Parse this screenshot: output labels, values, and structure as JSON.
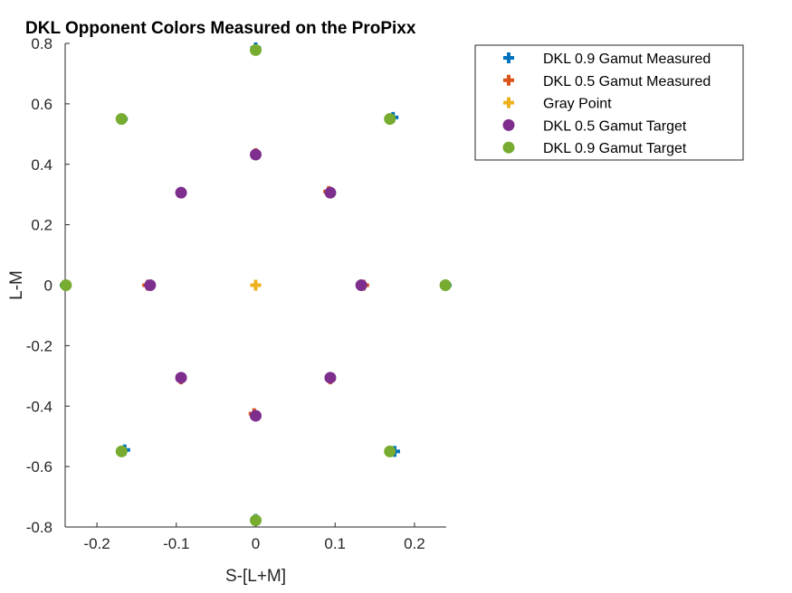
{
  "chart_data": {
    "type": "scatter",
    "title": "DKL Opponent Colors Measured on the ProPixx",
    "xlabel": "S-[L+M]",
    "ylabel": "L-M",
    "xlim": [
      -0.24,
      0.24
    ],
    "ylim": [
      -0.8,
      0.8
    ],
    "xticks": [
      -0.2,
      -0.1,
      0,
      0.1,
      0.2
    ],
    "xtick_labels": [
      "-0.2",
      "-0.1",
      "0",
      "0.1",
      "0.2"
    ],
    "yticks": [
      -0.8,
      -0.6,
      -0.4,
      -0.2,
      0,
      0.2,
      0.4,
      0.6,
      0.8
    ],
    "ytick_labels": [
      "-0.8",
      "-0.6",
      "-0.4",
      "-0.2",
      "0",
      "0.2",
      "0.4",
      "0.6",
      "0.8"
    ],
    "grid": false,
    "legend_position": "outside-top-right",
    "series": [
      {
        "name": "DKL 0.9 Gamut Measured",
        "marker": "plus",
        "color": "#0072BD",
        "points": [
          {
            "x": 0.24,
            "y": 0.0
          },
          {
            "x": 0.173,
            "y": 0.555
          },
          {
            "x": 0.0,
            "y": 0.785
          },
          {
            "x": -0.168,
            "y": 0.55
          },
          {
            "x": -0.24,
            "y": 0.0
          },
          {
            "x": -0.165,
            "y": -0.545
          },
          {
            "x": 0.0,
            "y": -0.775
          },
          {
            "x": 0.175,
            "y": -0.55
          }
        ]
      },
      {
        "name": "DKL 0.5 Gamut Measured",
        "marker": "plus",
        "color": "#D95319",
        "points": [
          {
            "x": 0.136,
            "y": 0.0
          },
          {
            "x": 0.092,
            "y": 0.31
          },
          {
            "x": 0.0,
            "y": 0.435
          },
          {
            "x": -0.094,
            "y": 0.305
          },
          {
            "x": -0.136,
            "y": 0.0
          },
          {
            "x": -0.094,
            "y": -0.31
          },
          {
            "x": -0.002,
            "y": -0.425
          },
          {
            "x": 0.094,
            "y": -0.31
          }
        ]
      },
      {
        "name": "Gray Point",
        "marker": "plus",
        "color": "#EDB120",
        "points": [
          {
            "x": 0.0,
            "y": 0.0
          }
        ]
      },
      {
        "name": "DKL 0.5 Gamut Target",
        "marker": "circle",
        "color": "#7E2F8E",
        "points": [
          {
            "x": 0.133,
            "y": 0.0
          },
          {
            "x": 0.094,
            "y": 0.306
          },
          {
            "x": 0.0,
            "y": 0.432
          },
          {
            "x": -0.094,
            "y": 0.306
          },
          {
            "x": -0.133,
            "y": 0.0
          },
          {
            "x": -0.094,
            "y": -0.306
          },
          {
            "x": 0.0,
            "y": -0.432
          },
          {
            "x": 0.094,
            "y": -0.306
          }
        ]
      },
      {
        "name": "DKL 0.9 Gamut Target",
        "marker": "circle",
        "color": "#77AC30",
        "points": [
          {
            "x": 0.239,
            "y": 0.0
          },
          {
            "x": 0.169,
            "y": 0.55
          },
          {
            "x": 0.0,
            "y": 0.778
          },
          {
            "x": -0.169,
            "y": 0.55
          },
          {
            "x": -0.239,
            "y": 0.0
          },
          {
            "x": -0.169,
            "y": -0.55
          },
          {
            "x": 0.0,
            "y": -0.778
          },
          {
            "x": 0.169,
            "y": -0.55
          }
        ]
      }
    ]
  }
}
